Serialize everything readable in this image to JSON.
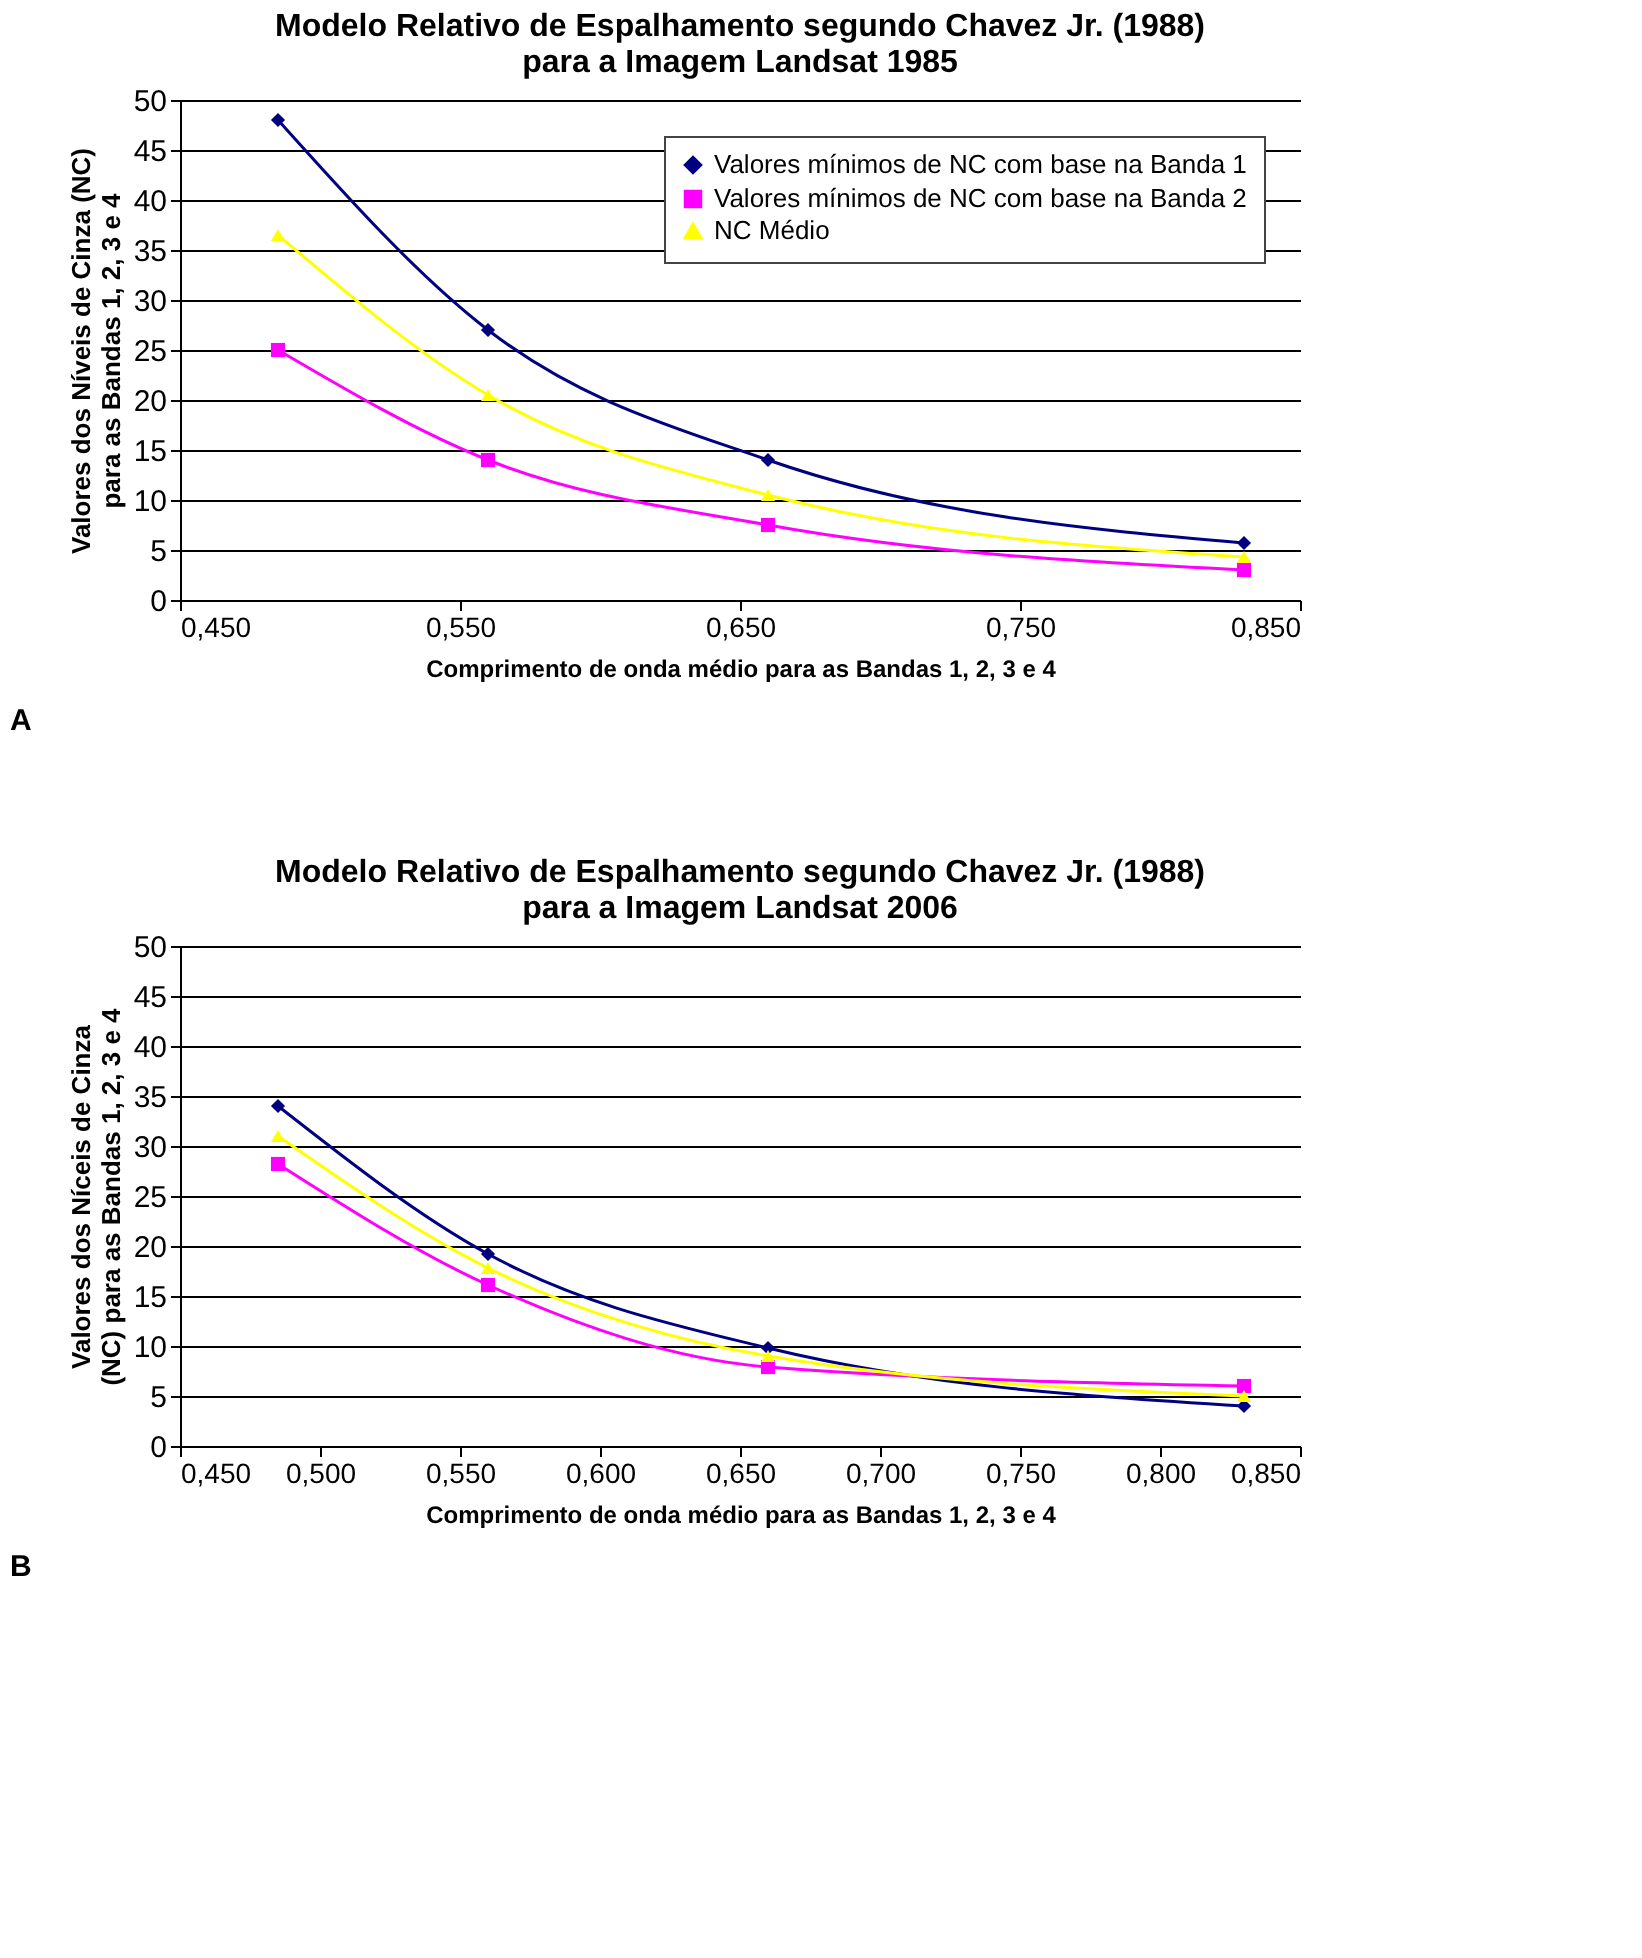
{
  "chart_data": [
    {
      "type": "line",
      "title": "Modelo Relativo de Espalhamento segundo Chavez  Jr. (1988)\npara a Imagem Landsat 1985",
      "xlabel": "Comprimento de onda médio para as Bandas 1, 2, 3 e 4",
      "ylabel": "Valores dos Níveis de Cinza (NC)\npara as Bandas 1, 2, 3 e 4",
      "x": [
        0.485,
        0.56,
        0.66,
        0.83
      ],
      "series": [
        {
          "name": "Valores mínimos de NC com base na Banda 1",
          "color": "#000080",
          "marker": "diamond",
          "values": [
            48,
            27,
            14,
            5.7
          ]
        },
        {
          "name": "Valores mínimos de NC com base na Banda 2",
          "color": "#ff00ff",
          "marker": "square",
          "values": [
            25,
            14,
            7.5,
            3
          ]
        },
        {
          "name": "NC Médio",
          "color": "#ffff00",
          "marker": "triangle",
          "values": [
            36.5,
            20.5,
            10.5,
            4.3
          ]
        }
      ],
      "xlim": [
        0.45,
        0.85
      ],
      "xticks": [
        {
          "value": 0.45,
          "label": "0,450"
        },
        {
          "value": 0.55,
          "label": "0,550"
        },
        {
          "value": 0.65,
          "label": "0,650"
        },
        {
          "value": 0.75,
          "label": "0,750"
        },
        {
          "value": 0.85,
          "label": "0,850"
        }
      ],
      "ylim": [
        0,
        50
      ],
      "yticks": [
        0,
        5,
        10,
        15,
        20,
        25,
        30,
        35,
        40,
        45,
        50
      ],
      "grid": "y",
      "legend": "top right",
      "line_style": "solid",
      "annotations": [
        "A"
      ]
    },
    {
      "type": "line",
      "title": "Modelo Relativo de Espalhamento segundo Chavez Jr. (1988)\npara a Imagem Landsat 2006",
      "xlabel": "Comprimento de onda médio para as Bandas 1, 2, 3 e 4",
      "ylabel": "Valores dos Níceis de Cinza\n(NC) para as Bandas 1, 2, 3 e 4",
      "x": [
        0.485,
        0.56,
        0.66,
        0.83
      ],
      "series": [
        {
          "name": "Valores mínimos de NC com base na Banda 1",
          "color": "#000080",
          "marker": "diamond",
          "values": [
            34,
            19.2,
            9.8,
            4
          ]
        },
        {
          "name": "Valores mínimos de NC com base na Banda 2",
          "color": "#ff00ff",
          "marker": "square",
          "values": [
            28.2,
            16.1,
            7.9,
            6
          ]
        },
        {
          "name": "NC Médio",
          "color": "#ffff00",
          "marker": "triangle",
          "values": [
            31,
            17.8,
            9,
            5
          ]
        }
      ],
      "xlim": [
        0.45,
        0.85
      ],
      "xticks": [
        {
          "value": 0.45,
          "label": "0,450"
        },
        {
          "value": 0.5,
          "label": "0,500"
        },
        {
          "value": 0.55,
          "label": "0,550"
        },
        {
          "value": 0.6,
          "label": "0,600"
        },
        {
          "value": 0.65,
          "label": "0,650"
        },
        {
          "value": 0.7,
          "label": "0,700"
        },
        {
          "value": 0.75,
          "label": "0,750"
        },
        {
          "value": 0.8,
          "label": "0,800"
        },
        {
          "value": 0.85,
          "label": "0,850"
        }
      ],
      "ylim": [
        0,
        50
      ],
      "yticks": [
        0,
        5,
        10,
        15,
        20,
        25,
        30,
        35,
        40,
        45,
        50
      ],
      "grid": "y",
      "legend": "top right",
      "line_style": "solid",
      "annotations": [
        "B"
      ]
    }
  ]
}
